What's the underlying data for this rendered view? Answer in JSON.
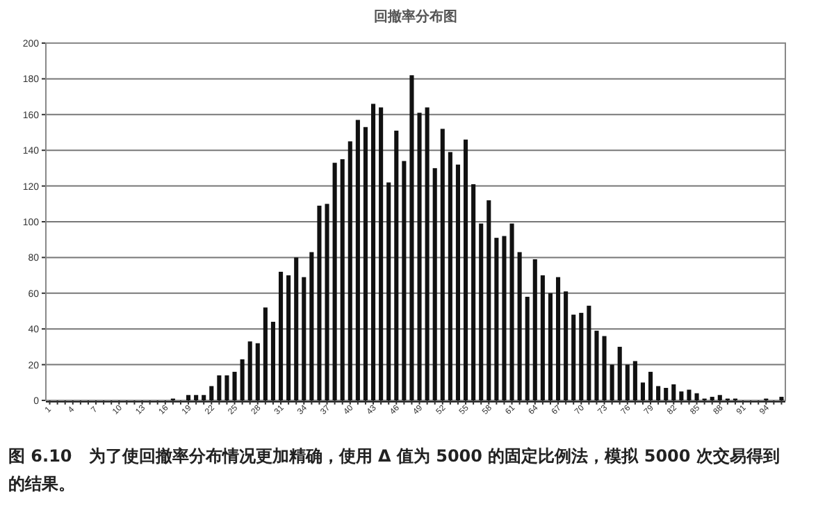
{
  "chart_data": {
    "type": "bar",
    "title": "回撤率分布图",
    "categories": [
      "1",
      null,
      null,
      "4",
      null,
      null,
      "7",
      null,
      null,
      "10",
      null,
      null,
      "13",
      null,
      null,
      "16",
      null,
      null,
      "19",
      null,
      null,
      "22",
      null,
      null,
      "25",
      null,
      null,
      "28",
      null,
      null,
      "31",
      null,
      null,
      "34",
      null,
      null,
      "37",
      null,
      null,
      "40",
      null,
      null,
      "43",
      null,
      null,
      "46",
      null,
      null,
      "49",
      null,
      null,
      "52",
      null,
      null,
      "55",
      null,
      null,
      "58",
      null,
      null,
      "61",
      null,
      null,
      "64",
      null,
      null,
      "67",
      null,
      null,
      "70",
      null,
      null,
      "73",
      null,
      null,
      "76",
      null,
      null,
      "79",
      null,
      null,
      "82",
      null,
      null,
      "85",
      null,
      null,
      "88",
      null,
      null,
      "91",
      null,
      null,
      "94",
      null,
      null
    ],
    "values": [
      0,
      0,
      0,
      0,
      0,
      0,
      0,
      0,
      0,
      0,
      0,
      0,
      0,
      0,
      0,
      0,
      1,
      0,
      3,
      3,
      3,
      8,
      14,
      14,
      16,
      23,
      33,
      32,
      52,
      44,
      72,
      70,
      80,
      69,
      83,
      109,
      110,
      133,
      135,
      145,
      157,
      153,
      166,
      164,
      122,
      151,
      134,
      182,
      161,
      164,
      130,
      152,
      139,
      132,
      146,
      121,
      99,
      112,
      91,
      92,
      99,
      83,
      58,
      79,
      70,
      60,
      69,
      61,
      48,
      49,
      53,
      39,
      36,
      20,
      30,
      20,
      22,
      10,
      16,
      8,
      7,
      9,
      5,
      6,
      4,
      1,
      2,
      3,
      1,
      1,
      0,
      0,
      0,
      1,
      0,
      2
    ],
    "color": "#111111",
    "ylim": [
      0,
      200
    ],
    "yticks": [
      0,
      20,
      40,
      60,
      80,
      100,
      120,
      140,
      160,
      180,
      200
    ],
    "grid": "y",
    "annotations": [
      "图 6.10　为了使回撤率分布情况更加精确，使用 Δ 值为 5000 的固定比例法，模拟 5000 次交易得到的结果。"
    ]
  }
}
